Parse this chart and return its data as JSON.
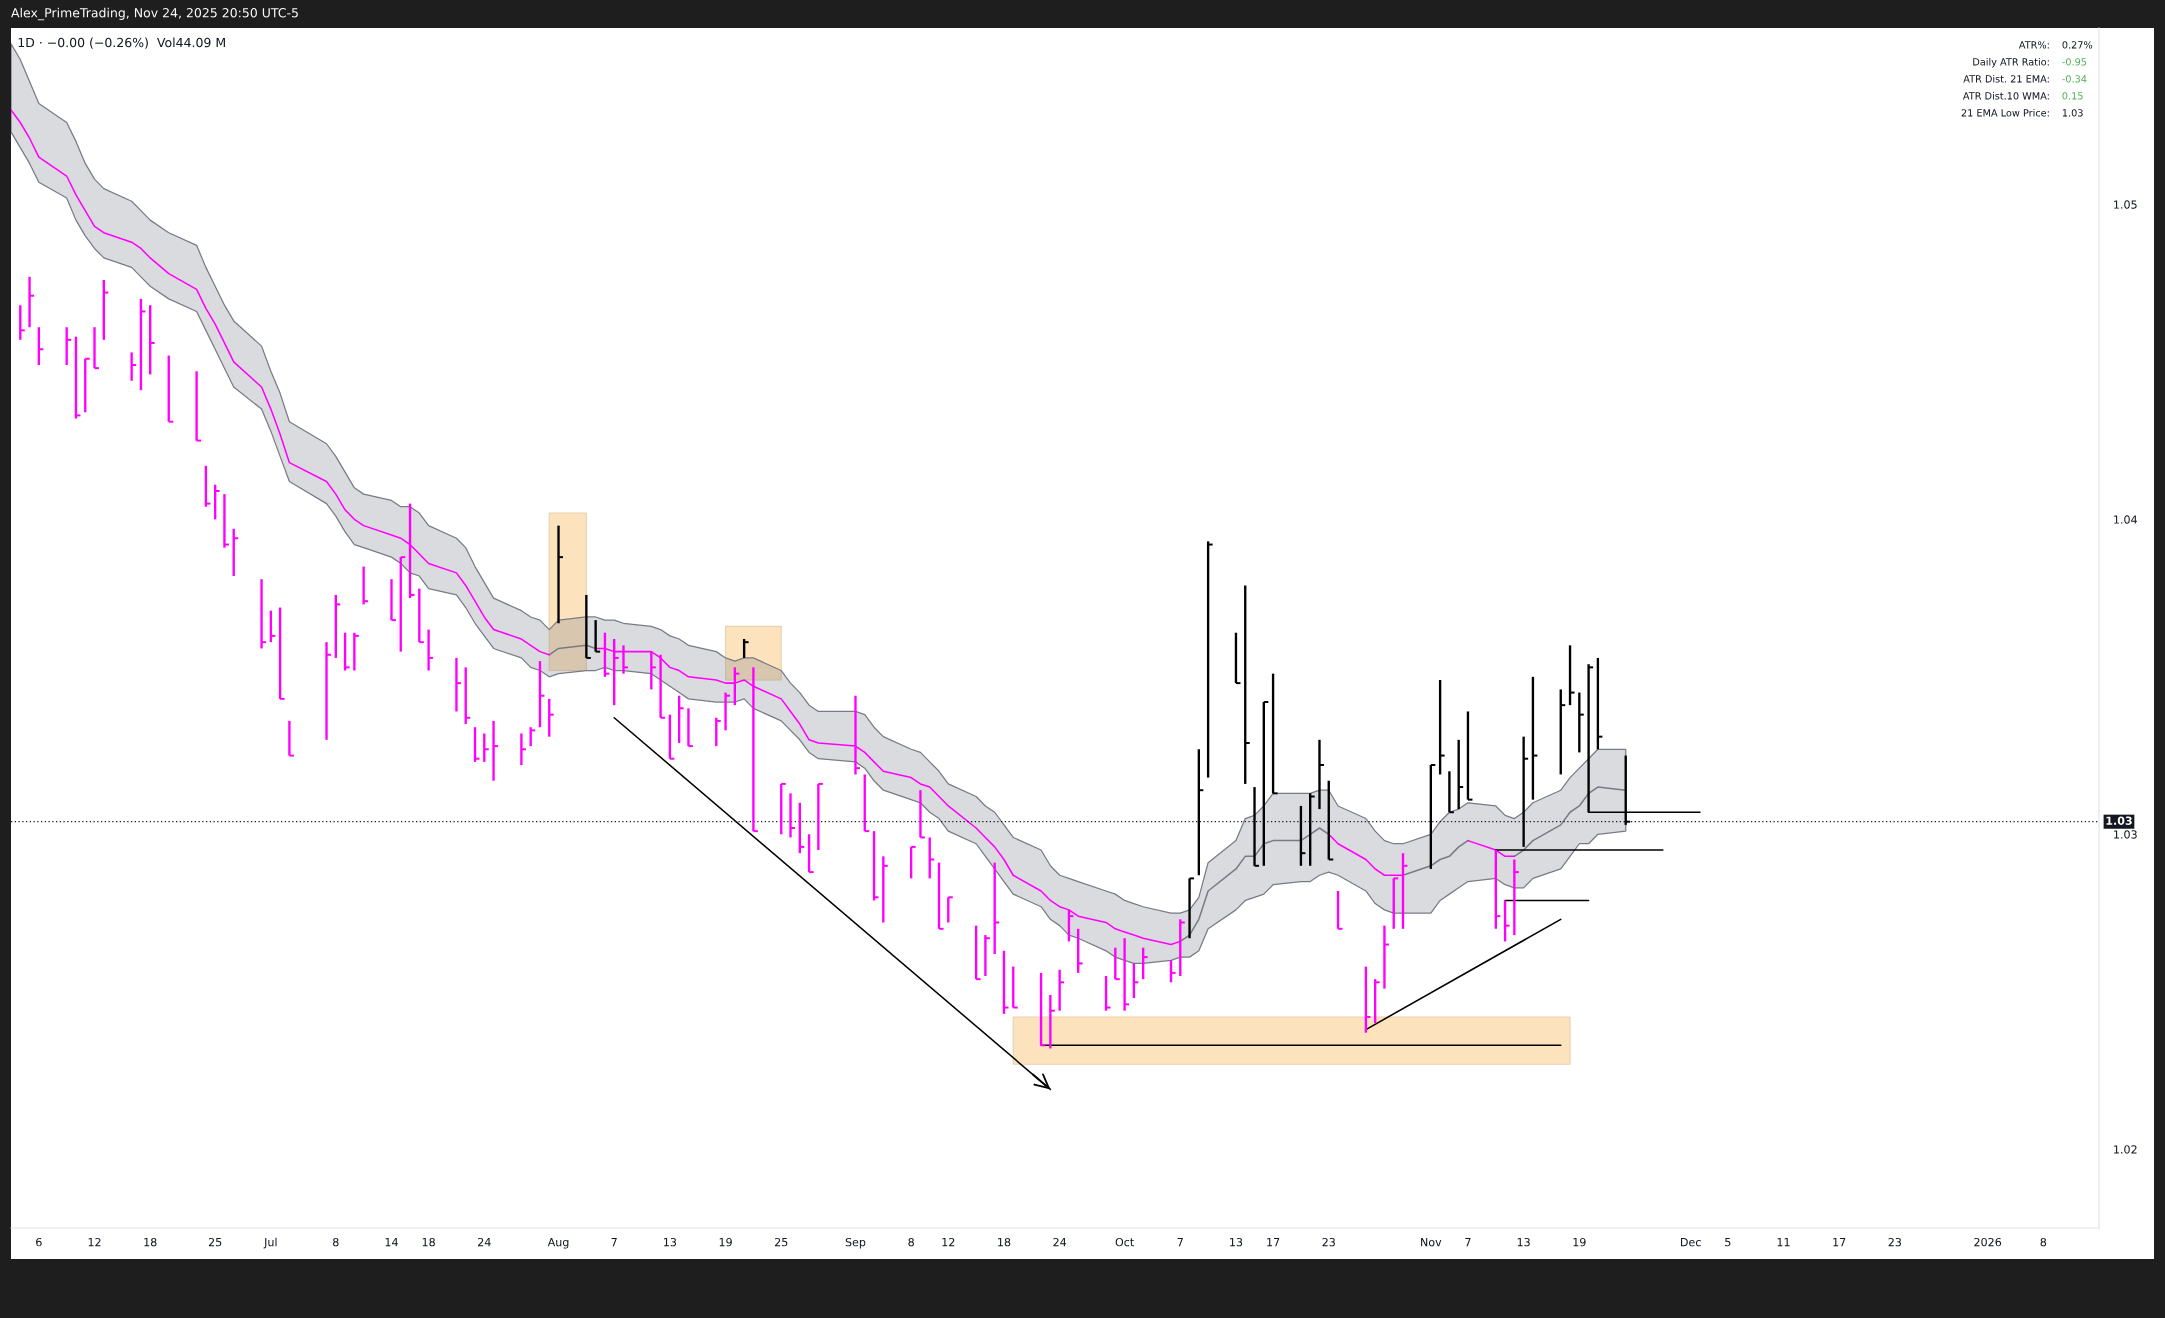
{
  "chart_data": {
    "type": "scatter",
    "title": "1D · −0.00 (−0.26%)  Vol44.09 M",
    "annotations": [
      "Alex_PrimeTrading, Nov 24, 2025 20:50 UTC-5",
      "ATR%:",
      "0.27%",
      "Daily ATR Ratio:",
      "-0.95",
      "ATR Dist. 21 EMA:",
      "-0.34",
      "ATR Dist.10 WMA:",
      "0.15",
      "21 EMA Low Price:",
      "1.03"
    ],
    "marker": "square",
    "x": [
      "2025-06-04",
      "2025-06-05",
      "2025-06-06",
      "2025-06-09",
      "2025-06-10",
      "2025-06-11",
      "2025-06-12",
      "2025-06-13",
      "2025-06-16",
      "2025-06-17",
      "2025-06-18",
      "2025-06-20",
      "2025-06-23",
      "2025-06-24",
      "2025-06-25",
      "2025-06-26",
      "2025-06-27",
      "2025-06-30",
      "2025-07-01",
      "2025-07-02",
      "2025-07-03",
      "2025-07-07",
      "2025-07-08",
      "2025-07-09",
      "2025-07-10",
      "2025-07-11",
      "2025-07-14",
      "2025-07-15",
      "2025-07-16",
      "2025-07-17",
      "2025-07-18",
      "2025-07-21",
      "2025-07-22",
      "2025-07-23",
      "2025-07-24",
      "2025-07-25",
      "2025-07-28",
      "2025-07-29",
      "2025-07-30",
      "2025-07-31",
      "2025-08-01",
      "2025-08-04",
      "2025-08-05",
      "2025-08-06",
      "2025-08-07",
      "2025-08-08",
      "2025-08-11",
      "2025-08-12",
      "2025-08-13",
      "2025-08-14",
      "2025-08-15",
      "2025-08-18",
      "2025-08-19",
      "2025-08-20",
      "2025-08-21",
      "2025-08-22",
      "2025-08-25",
      "2025-08-26",
      "2025-08-27",
      "2025-08-28",
      "2025-08-29",
      "2025-09-02",
      "2025-09-03",
      "2025-09-04",
      "2025-09-05",
      "2025-09-08",
      "2025-09-09",
      "2025-09-10",
      "2025-09-11",
      "2025-09-12",
      "2025-09-15",
      "2025-09-16",
      "2025-09-17",
      "2025-09-18",
      "2025-09-19",
      "2025-09-22",
      "2025-09-23",
      "2025-09-24",
      "2025-09-25",
      "2025-09-26",
      "2025-09-29",
      "2025-09-30",
      "2025-10-01",
      "2025-10-02",
      "2025-10-03",
      "2025-10-06",
      "2025-10-07",
      "2025-10-08",
      "2025-10-09",
      "2025-10-10",
      "2025-10-13",
      "2025-10-14",
      "2025-10-15",
      "2025-10-16",
      "2025-10-17",
      "2025-10-20",
      "2025-10-21",
      "2025-10-22",
      "2025-10-23",
      "2025-10-24",
      "2025-10-27",
      "2025-10-28",
      "2025-10-29",
      "2025-10-30",
      "2025-10-31",
      "2025-11-03",
      "2025-11-04",
      "2025-11-05",
      "2025-11-06",
      "2025-11-07",
      "2025-11-10",
      "2025-11-11",
      "2025-11-12",
      "2025-11-13",
      "2025-11-14",
      "2025-11-17",
      "2025-11-18",
      "2025-11-19",
      "2025-11-20",
      "2025-11-21",
      "2025-11-24"
    ],
    "values": [
      1.046,
      1.0471,
      1.0454,
      1.0457,
      1.0433,
      1.0451,
      1.0448,
      1.0472,
      1.0449,
      1.0466,
      1.0456,
      1.0431,
      1.0425,
      1.0405,
      1.0409,
      1.0392,
      1.0394,
      1.0361,
      1.0363,
      1.0343,
      1.0325,
      1.0357,
      1.0373,
      1.0353,
      1.0363,
      1.0374,
      1.0368,
      1.0388,
      1.0376,
      1.0361,
      1.0356,
      1.0348,
      1.0337,
      1.0324,
      1.0327,
      1.0328,
      1.0327,
      1.0333,
      1.0344,
      1.0338,
      1.0388,
      1.0356,
      1.0358,
      1.0351,
      1.0356,
      1.0353,
      1.0353,
      1.0337,
      1.0324,
      1.034,
      1.0328,
      1.0336,
      1.0344,
      1.0351,
      1.0361,
      1.0301,
      1.0316,
      1.0302,
      1.0296,
      1.0288,
      1.0316,
      1.0321,
      1.0301,
      1.028,
      1.029,
      1.0296,
      1.0299,
      1.0292,
      1.027,
      1.028,
      1.0254,
      1.0267,
      1.0272,
      1.0245,
      1.0245,
      1.0233,
      1.0244,
      1.0253,
      1.0274,
      1.0259,
      1.0245,
      1.0254,
      1.0246,
      1.0253,
      1.0261,
      1.0256,
      1.0272,
      1.0286,
      1.0314,
      1.0392,
      1.0348,
      1.0329,
      1.029,
      1.0342,
      1.0313,
      1.0294,
      1.0312,
      1.0322,
      1.0292,
      1.027,
      1.0242,
      1.0253,
      1.0265,
      1.0286,
      1.029,
      1.0322,
      1.0325,
      1.0307,
      1.0315,
      1.0311,
      1.0274,
      1.0271,
      1.0288,
      1.0324,
      1.0325,
      1.0341,
      1.0345,
      1.0338,
      1.0353,
      1.0331,
      1.0304
    ],
    "errors": [
      [
        1.0457,
        1.0468
      ],
      [
        1.0461,
        1.0477
      ],
      [
        1.0449,
        1.0461
      ],
      [
        1.0449,
        1.0461
      ],
      [
        1.0432,
        1.0458
      ],
      [
        1.0434,
        1.0451
      ],
      [
        1.0448,
        1.0461
      ],
      [
        1.0457,
        1.0476
      ],
      [
        1.0444,
        1.0453
      ],
      [
        1.0441,
        1.047
      ],
      [
        1.0446,
        1.0468
      ],
      [
        1.0431,
        1.0452
      ],
      [
        1.0425,
        1.0447
      ],
      [
        1.0404,
        1.0417
      ],
      [
        1.04,
        1.0411
      ],
      [
        1.0391,
        1.0408
      ],
      [
        1.0382,
        1.0397
      ],
      [
        1.0359,
        1.0381
      ],
      [
        1.0361,
        1.0371
      ],
      [
        1.0343,
        1.0372
      ],
      [
        1.0325,
        1.0336
      ],
      [
        1.033,
        1.0361
      ],
      [
        1.0356,
        1.0376
      ],
      [
        1.0352,
        1.0364
      ],
      [
        1.0352,
        1.0364
      ],
      [
        1.0373,
        1.0385
      ],
      [
        1.0368,
        1.0381
      ],
      [
        1.0358,
        1.0388
      ],
      [
        1.0375,
        1.0405
      ],
      [
        1.0361,
        1.0378
      ],
      [
        1.0352,
        1.0365
      ],
      [
        1.0339,
        1.0356
      ],
      [
        1.0335,
        1.0353
      ],
      [
        1.0323,
        1.0334
      ],
      [
        1.0323,
        1.0332
      ],
      [
        1.0317,
        1.0336
      ],
      [
        1.0322,
        1.0332
      ],
      [
        1.0328,
        1.0334
      ],
      [
        1.0334,
        1.0355
      ],
      [
        1.0331,
        1.0343
      ],
      [
        1.0367,
        1.0398
      ],
      [
        1.0356,
        1.0376
      ],
      [
        1.0358,
        1.0368
      ],
      [
        1.035,
        1.0364
      ],
      [
        1.0341,
        1.0362
      ],
      [
        1.0351,
        1.036
      ],
      [
        1.0346,
        1.0358
      ],
      [
        1.0337,
        1.0357
      ],
      [
        1.0324,
        1.0338
      ],
      [
        1.0329,
        1.0344
      ],
      [
        1.0328,
        1.034
      ],
      [
        1.0328,
        1.0337
      ],
      [
        1.0333,
        1.0345
      ],
      [
        1.0341,
        1.0353
      ],
      [
        1.0356,
        1.0362
      ],
      [
        1.0301,
        1.0353
      ],
      [
        1.03,
        1.0316
      ],
      [
        1.0299,
        1.0313
      ],
      [
        1.0294,
        1.031
      ],
      [
        1.0288,
        1.03
      ],
      [
        1.0295,
        1.0316
      ],
      [
        1.0319,
        1.0344
      ],
      [
        1.0301,
        1.0319
      ],
      [
        1.0279,
        1.0301
      ],
      [
        1.0272,
        1.0293
      ],
      [
        1.0286,
        1.0296
      ],
      [
        1.0299,
        1.0314
      ],
      [
        1.0286,
        1.0299
      ],
      [
        1.027,
        1.0291
      ],
      [
        1.0272,
        1.028
      ],
      [
        1.0254,
        1.0271
      ],
      [
        1.0255,
        1.0268
      ],
      [
        1.0262,
        1.0291
      ],
      [
        1.0243,
        1.0263
      ],
      [
        1.0245,
        1.0258
      ],
      [
        1.0233,
        1.0256
      ],
      [
        1.0232,
        1.0249
      ],
      [
        1.0244,
        1.0257
      ],
      [
        1.0266,
        1.0276
      ],
      [
        1.0256,
        1.027
      ],
      [
        1.0244,
        1.0255
      ],
      [
        1.0254,
        1.0264
      ],
      [
        1.0244,
        1.0267
      ],
      [
        1.0248,
        1.0259
      ],
      [
        1.0254,
        1.0264
      ],
      [
        1.0253,
        1.026
      ],
      [
        1.0255,
        1.0273
      ],
      [
        1.0267,
        1.0286
      ],
      [
        1.0287,
        1.0327
      ],
      [
        1.0318,
        1.0393
      ],
      [
        1.0348,
        1.0364
      ],
      [
        1.0316,
        1.0379
      ],
      [
        1.029,
        1.0315
      ],
      [
        1.029,
        1.0342
      ],
      [
        1.0313,
        1.0351
      ],
      [
        1.029,
        1.0309
      ],
      [
        1.029,
        1.0313
      ],
      [
        1.0308,
        1.033
      ],
      [
        1.0292,
        1.0317
      ],
      [
        1.027,
        1.0282
      ],
      [
        1.0237,
        1.0258
      ],
      [
        1.024,
        1.0254
      ],
      [
        1.0251,
        1.0271
      ],
      [
        1.027,
        1.0286
      ],
      [
        1.027,
        1.0294
      ],
      [
        1.0289,
        1.0322
      ],
      [
        1.0319,
        1.0349
      ],
      [
        1.0307,
        1.032
      ],
      [
        1.0308,
        1.033
      ],
      [
        1.0311,
        1.0339
      ],
      [
        1.027,
        1.0295
      ],
      [
        1.0266,
        1.0279
      ],
      [
        1.0268,
        1.0292
      ],
      [
        1.0296,
        1.0331
      ],
      [
        1.0311,
        1.035
      ],
      [
        1.0319,
        1.0346
      ],
      [
        1.0341,
        1.036
      ],
      [
        1.0326,
        1.0345
      ],
      [
        1.0307,
        1.0354
      ],
      [
        1.0327,
        1.0356
      ],
      [
        1.0303,
        1.0325
      ]
    ],
    "colors": [
      "#ff00ff",
      "#ff00ff",
      "#ff00ff",
      "#ff00ff",
      "#ff00ff",
      "#ff00ff",
      "#ff00ff",
      "#ff00ff",
      "#ff00ff",
      "#ff00ff",
      "#ff00ff",
      "#ff00ff",
      "#ff00ff",
      "#ff00ff",
      "#ff00ff",
      "#ff00ff",
      "#ff00ff",
      "#ff00ff",
      "#ff00ff",
      "#ff00ff",
      "#ff00ff",
      "#ff00ff",
      "#ff00ff",
      "#ff00ff",
      "#ff00ff",
      "#ff00ff",
      "#ff00ff",
      "#ff00ff",
      "#ff00ff",
      "#ff00ff",
      "#ff00ff",
      "#ff00ff",
      "#ff00ff",
      "#ff00ff",
      "#ff00ff",
      "#ff00ff",
      "#ff00ff",
      "#ff00ff",
      "#ff00ff",
      "#ff00ff",
      "#000000",
      "#000000",
      "#000000",
      "#ff00ff",
      "#ff00ff",
      "#ff00ff",
      "#ff00ff",
      "#ff00ff",
      "#ff00ff",
      "#ff00ff",
      "#ff00ff",
      "#ff00ff",
      "#ff00ff",
      "#ff00ff",
      "#000000",
      "#ff00ff",
      "#ff00ff",
      "#ff00ff",
      "#ff00ff",
      "#ff00ff",
      "#ff00ff",
      "#ff00ff",
      "#ff00ff",
      "#ff00ff",
      "#ff00ff",
      "#ff00ff",
      "#ff00ff",
      "#ff00ff",
      "#ff00ff",
      "#ff00ff",
      "#ff00ff",
      "#ff00ff",
      "#ff00ff",
      "#ff00ff",
      "#ff00ff",
      "#ff00ff",
      "#ff00ff",
      "#ff00ff",
      "#ff00ff",
      "#ff00ff",
      "#ff00ff",
      "#ff00ff",
      "#ff00ff",
      "#ff00ff",
      "#ff00ff",
      "#ff00ff",
      "#ff00ff",
      "#000000",
      "#000000",
      "#000000",
      "#000000",
      "#000000",
      "#000000",
      "#000000",
      "#000000",
      "#000000",
      "#000000",
      "#000000",
      "#000000",
      "#ff00ff",
      "#ff00ff",
      "#ff00ff",
      "#ff00ff",
      "#ff00ff",
      "#ff00ff",
      "#000000",
      "#000000",
      "#000000",
      "#000000",
      "#000000",
      "#ff00ff",
      "#ff00ff",
      "#ff00ff",
      "#000000",
      "#000000",
      "#000000",
      "#000000",
      "#000000",
      "#000000",
      "#000000",
      "#000000"
    ],
    "xlim": [
      "2025-06-03",
      "2026-01-14"
    ],
    "xticks": [
      {
        "value": "2025-06-06",
        "label": "6"
      },
      {
        "value": "2025-06-12",
        "label": "12"
      },
      {
        "value": "2025-06-18",
        "label": "18"
      },
      {
        "value": "2025-06-25",
        "label": "25"
      },
      {
        "value": "2025-07-01",
        "label": "Jul"
      },
      {
        "value": "2025-07-08",
        "label": "8"
      },
      {
        "value": "2025-07-14",
        "label": "14"
      },
      {
        "value": "2025-07-18",
        "label": "18"
      },
      {
        "value": "2025-07-24",
        "label": "24"
      },
      {
        "value": "2025-08-01",
        "label": "Aug"
      },
      {
        "value": "2025-08-07",
        "label": "7"
      },
      {
        "value": "2025-08-13",
        "label": "13"
      },
      {
        "value": "2025-08-19",
        "label": "19"
      },
      {
        "value": "2025-08-25",
        "label": "25"
      },
      {
        "value": "2025-09-02",
        "label": "Sep"
      },
      {
        "value": "2025-09-08",
        "label": "8"
      },
      {
        "value": "2025-09-12",
        "label": "12"
      },
      {
        "value": "2025-09-18",
        "label": "18"
      },
      {
        "value": "2025-09-24",
        "label": "24"
      },
      {
        "value": "2025-10-01",
        "label": "Oct"
      },
      {
        "value": "2025-10-07",
        "label": "7"
      },
      {
        "value": "2025-10-13",
        "label": "13"
      },
      {
        "value": "2025-10-17",
        "label": "17"
      },
      {
        "value": "2025-10-23",
        "label": "23"
      },
      {
        "value": "2025-11-03",
        "label": "Nov"
      },
      {
        "value": "2025-11-07",
        "label": "7"
      },
      {
        "value": "2025-11-13",
        "label": "13"
      },
      {
        "value": "2025-11-19",
        "label": "19"
      },
      {
        "value": "2025-12-01",
        "label": "Dec"
      },
      {
        "value": "2025-12-05",
        "label": "5"
      },
      {
        "value": "2025-12-11",
        "label": "11"
      },
      {
        "value": "2025-12-17",
        "label": "17"
      },
      {
        "value": "2025-12-23",
        "label": "23"
      },
      {
        "value": "2026-01-02",
        "label": "2026"
      },
      {
        "value": "2026-01-08",
        "label": "8"
      }
    ],
    "ylim": [
      1.0175,
      1.0556
    ],
    "yticks": [
      1.02,
      1.03,
      1.04,
      1.05
    ],
    "ref_lines": [
      {
        "axis": "y",
        "value": 1.0304,
        "label": "1.03",
        "line_style": "dotted",
        "color": "#131722"
      }
    ],
    "series": [
      {
        "type": "line",
        "marker": "none",
        "color": "#787b86",
        "x": [
          "2025-06-03",
          "2025-06-04",
          "2025-06-05",
          "2025-06-06",
          "2025-06-09",
          "2025-06-10",
          "2025-06-11",
          "2025-06-12",
          "2025-06-13",
          "2025-06-16",
          "2025-06-17",
          "2025-06-18",
          "2025-06-20",
          "2025-06-23",
          "2025-06-24",
          "2025-06-25",
          "2025-06-26",
          "2025-06-27",
          "2025-06-30",
          "2025-07-01",
          "2025-07-02",
          "2025-07-03",
          "2025-07-07",
          "2025-07-08",
          "2025-07-09",
          "2025-07-10",
          "2025-07-11",
          "2025-07-14",
          "2025-07-15",
          "2025-07-16",
          "2025-07-17",
          "2025-07-18",
          "2025-07-21",
          "2025-07-22",
          "2025-07-23",
          "2025-07-24",
          "2025-07-25",
          "2025-07-28",
          "2025-07-29",
          "2025-07-30",
          "2025-07-31",
          "2025-08-01",
          "2025-08-04",
          "2025-08-05",
          "2025-08-06",
          "2025-08-07",
          "2025-08-08",
          "2025-08-11",
          "2025-08-12",
          "2025-08-13",
          "2025-08-14",
          "2025-08-15",
          "2025-08-18",
          "2025-08-19",
          "2025-08-20",
          "2025-08-21",
          "2025-08-22",
          "2025-08-25",
          "2025-08-26",
          "2025-08-27",
          "2025-08-28",
          "2025-08-29",
          "2025-09-02",
          "2025-09-03",
          "2025-09-04",
          "2025-09-05",
          "2025-09-08",
          "2025-09-09",
          "2025-09-10",
          "2025-09-11",
          "2025-09-12",
          "2025-09-15",
          "2025-09-16",
          "2025-09-17",
          "2025-09-18",
          "2025-09-19",
          "2025-09-22",
          "2025-09-23",
          "2025-09-24",
          "2025-09-25",
          "2025-09-26",
          "2025-09-29",
          "2025-09-30",
          "2025-10-01",
          "2025-10-02",
          "2025-10-03",
          "2025-10-06",
          "2025-10-07",
          "2025-10-08",
          "2025-10-09",
          "2025-10-10",
          "2025-10-13",
          "2025-10-14",
          "2025-10-15",
          "2025-10-16",
          "2025-10-17",
          "2025-10-20",
          "2025-10-21",
          "2025-10-22",
          "2025-10-23",
          "2025-10-24",
          "2025-10-27",
          "2025-10-28",
          "2025-10-29",
          "2025-10-30",
          "2025-10-31",
          "2025-11-03",
          "2025-11-04",
          "2025-11-05",
          "2025-11-06",
          "2025-11-07",
          "2025-11-10",
          "2025-11-11",
          "2025-11-12",
          "2025-11-13",
          "2025-11-14",
          "2025-11-17",
          "2025-11-18",
          "2025-11-19",
          "2025-11-20",
          "2025-11-21",
          "2025-11-24"
        ],
        "values": [
          null,
          null,
          null,
          null,
          null,
          null,
          null,
          null,
          null,
          null,
          null,
          null,
          null,
          null,
          null,
          null,
          null,
          null,
          null,
          null,
          null,
          null,
          null,
          null,
          null,
          null,
          null,
          null,
          null,
          null,
          null,
          null,
          null,
          null,
          null,
          null,
          null,
          null,
          null,
          null,
          1.0357,
          1.0359,
          1.036,
          1.0359,
          null,
          null,
          null,
          null,
          null,
          null,
          null,
          null,
          null,
          null,
          null,
          null,
          null,
          null,
          null,
          null,
          null,
          null,
          null,
          null,
          null,
          null,
          null,
          null,
          null,
          null,
          null,
          null,
          null,
          null,
          null,
          null,
          null,
          null,
          null,
          null,
          null,
          null,
          null,
          null,
          null,
          null,
          null,
          1.0266,
          1.0268,
          1.0273,
          1.0282,
          1.0289,
          1.0293,
          1.0293,
          1.0297,
          1.0298,
          1.0298,
          1.03,
          1.0302,
          1.03,
          null,
          null,
          null,
          null,
          null,
          1.0287,
          1.029,
          1.0292,
          1.0293,
          1.0296,
          1.0298,
          null,
          null,
          1.0293,
          1.0295,
          1.0298,
          1.0303,
          1.0307,
          1.0309,
          1.0313,
          1.0315,
          1.0314
        ],
        "upper": [
          1.0551,
          1.0546,
          1.0539,
          1.0532,
          1.0526,
          1.052,
          1.0513,
          1.0508,
          1.0505,
          1.0501,
          1.0498,
          1.0495,
          1.0491,
          1.0487,
          1.048,
          1.0474,
          1.0468,
          1.0463,
          1.0455,
          1.0447,
          1.044,
          1.0431,
          1.0424,
          1.042,
          1.0415,
          1.041,
          1.0408,
          1.0406,
          1.0404,
          1.0404,
          1.0402,
          1.0398,
          1.0394,
          1.0391,
          1.0385,
          1.038,
          1.0375,
          1.0371,
          1.0369,
          1.0368,
          1.0365,
          1.0368,
          1.0369,
          1.0369,
          1.0368,
          1.0368,
          1.0367,
          1.0366,
          1.0365,
          1.0363,
          1.0362,
          1.036,
          1.0358,
          1.0356,
          1.0355,
          1.0356,
          1.0356,
          1.0352,
          1.0348,
          1.0345,
          1.0341,
          1.0339,
          1.0339,
          1.0338,
          1.0334,
          1.0331,
          1.0327,
          1.0326,
          1.0323,
          1.032,
          1.0316,
          1.0312,
          1.0309,
          1.0307,
          1.0303,
          1.0299,
          1.0295,
          1.029,
          1.0287,
          1.0286,
          1.0285,
          1.0282,
          1.0281,
          1.0279,
          1.0278,
          1.0277,
          1.0275,
          1.0275,
          1.0276,
          1.028,
          1.0291,
          1.0298,
          1.0305,
          1.0306,
          1.0309,
          1.0313,
          1.0313,
          1.0313,
          1.0314,
          1.0314,
          1.0309,
          1.0305,
          1.0301,
          1.0298,
          1.0297,
          1.0297,
          1.03,
          1.0304,
          1.0307,
          1.0308,
          1.031,
          1.0309,
          1.0306,
          1.0305,
          1.0307,
          1.031,
          1.0314,
          1.0318,
          1.0321,
          1.0324,
          1.0327,
          1.0327
        ],
        "lower": [
          1.0523,
          1.0518,
          1.0513,
          1.0507,
          1.0502,
          1.0495,
          1.049,
          1.0486,
          1.0483,
          1.048,
          1.0477,
          1.0474,
          1.047,
          1.0466,
          1.046,
          1.0454,
          1.0448,
          1.0442,
          1.0435,
          1.0428,
          1.042,
          1.0412,
          1.0405,
          1.0401,
          1.0396,
          1.0392,
          1.0391,
          1.0388,
          1.0386,
          1.0383,
          1.0382,
          1.0378,
          1.0376,
          1.0372,
          1.0367,
          1.0363,
          1.0359,
          1.0356,
          1.0353,
          1.0352,
          1.035,
          1.0351,
          1.0352,
          1.0352,
          1.0353,
          1.0352,
          1.0352,
          1.0351,
          1.0349,
          1.0347,
          1.0345,
          1.0343,
          1.0342,
          1.0342,
          1.0342,
          1.0343,
          1.034,
          1.0336,
          1.0333,
          1.033,
          1.0326,
          1.0324,
          1.0323,
          1.0321,
          1.0317,
          1.0314,
          1.0311,
          1.031,
          1.0307,
          1.0305,
          1.0301,
          1.0297,
          1.0293,
          1.0289,
          1.0285,
          1.0281,
          1.0277,
          1.0273,
          1.0271,
          1.0268,
          1.0267,
          1.0263,
          1.0261,
          1.026,
          1.0259,
          1.0259,
          1.026,
          1.0261,
          1.0261,
          1.0263,
          1.027,
          1.0276,
          1.0279,
          1.028,
          1.0281,
          1.0284,
          1.0285,
          1.0285,
          1.0287,
          1.0288,
          1.0287,
          1.0282,
          1.0278,
          1.0276,
          1.0275,
          1.0275,
          1.0275,
          1.0279,
          1.0281,
          1.0283,
          1.0285,
          1.0286,
          1.0284,
          1.0283,
          1.0283,
          1.0286,
          1.0289,
          1.0293,
          1.0297,
          1.0297,
          1.03,
          1.0301
        ]
      },
      {
        "type": "line",
        "marker": "none",
        "color": "#ff00ff",
        "x": [
          "2025-06-03",
          "2025-06-04",
          "2025-06-05",
          "2025-06-06",
          "2025-06-09",
          "2025-06-10",
          "2025-06-11",
          "2025-06-12",
          "2025-06-13",
          "2025-06-16",
          "2025-06-17",
          "2025-06-18",
          "2025-06-20",
          "2025-06-23",
          "2025-06-24",
          "2025-06-25",
          "2025-06-26",
          "2025-06-27",
          "2025-06-30",
          "2025-07-01",
          "2025-07-02",
          "2025-07-03",
          "2025-07-07",
          "2025-07-08",
          "2025-07-09",
          "2025-07-10",
          "2025-07-11",
          "2025-07-14",
          "2025-07-15",
          "2025-07-16",
          "2025-07-17",
          "2025-07-18",
          "2025-07-21",
          "2025-07-22",
          "2025-07-23",
          "2025-07-24",
          "2025-07-25",
          "2025-07-28",
          "2025-07-29",
          "2025-07-30",
          "2025-07-31",
          "2025-08-01",
          "2025-08-04",
          "2025-08-05",
          "2025-08-06",
          "2025-08-07",
          "2025-08-08",
          "2025-08-11",
          "2025-08-12",
          "2025-08-13",
          "2025-08-14",
          "2025-08-15",
          "2025-08-18",
          "2025-08-19",
          "2025-08-20",
          "2025-08-21",
          "2025-08-22",
          "2025-08-25",
          "2025-08-26",
          "2025-08-27",
          "2025-08-28",
          "2025-08-29",
          "2025-09-02",
          "2025-09-03",
          "2025-09-04",
          "2025-09-05",
          "2025-09-08",
          "2025-09-09",
          "2025-09-10",
          "2025-09-11",
          "2025-09-12",
          "2025-09-15",
          "2025-09-16",
          "2025-09-17",
          "2025-09-18",
          "2025-09-19",
          "2025-09-22",
          "2025-09-23",
          "2025-09-24",
          "2025-09-25",
          "2025-09-26",
          "2025-09-29",
          "2025-09-30",
          "2025-10-01",
          "2025-10-02",
          "2025-10-03",
          "2025-10-06",
          "2025-10-07",
          "2025-10-08",
          "2025-10-09",
          "2025-10-10",
          "2025-10-13",
          "2025-10-14",
          "2025-10-15",
          "2025-10-16",
          "2025-10-17",
          "2025-10-20",
          "2025-10-21",
          "2025-10-22",
          "2025-10-23",
          "2025-10-24",
          "2025-10-27",
          "2025-10-28",
          "2025-10-29",
          "2025-10-30",
          "2025-10-31",
          "2025-11-03",
          "2025-11-04",
          "2025-11-05",
          "2025-11-06",
          "2025-11-07",
          "2025-11-10",
          "2025-11-11",
          "2025-11-12"
        ],
        "values": [
          1.053,
          1.0526,
          1.0521,
          1.0515,
          1.0509,
          1.0503,
          1.0498,
          1.0493,
          1.0491,
          1.0488,
          1.0486,
          1.0483,
          1.0478,
          1.0473,
          1.0467,
          1.0462,
          1.0456,
          1.045,
          1.0442,
          1.0435,
          1.0427,
          1.0418,
          1.0412,
          1.0408,
          1.0403,
          1.04,
          1.0398,
          1.0395,
          1.0394,
          1.0392,
          1.0389,
          1.0386,
          1.0383,
          1.0379,
          1.0374,
          1.0369,
          1.0365,
          1.0362,
          1.036,
          1.0358,
          1.0357,
          null,
          null,
          1.0359,
          1.0359,
          1.0358,
          1.0358,
          1.0358,
          1.0356,
          1.0353,
          1.0352,
          1.035,
          1.0349,
          1.0348,
          1.0348,
          1.0349,
          1.0347,
          1.0343,
          1.0339,
          1.0335,
          1.033,
          1.0329,
          1.0328,
          1.0326,
          1.0323,
          1.032,
          1.0318,
          1.0316,
          1.0315,
          1.0312,
          1.0309,
          1.0302,
          1.0299,
          1.0296,
          1.0292,
          1.0287,
          1.0282,
          1.0279,
          1.0277,
          1.0276,
          1.0274,
          1.0272,
          1.027,
          1.0269,
          1.0268,
          1.0267,
          1.0265,
          1.0266,
          null,
          null,
          null,
          null,
          null,
          null,
          null,
          null,
          null,
          null,
          null,
          1.03,
          1.0297,
          1.0292,
          1.0289,
          1.0287,
          1.0287,
          1.0287,
          null,
          null,
          null,
          null,
          1.0298,
          1.0295,
          1.0293,
          1.0293
        ]
      },
      {
        "type": "line",
        "color": "#fde3bd",
        "x": [
          "2025-07-31",
          "2025-08-04"
        ],
        "values": [
          null,
          null
        ],
        "lower": [
          1.0352,
          1.0352
        ],
        "upper": [
          1.0402,
          1.0402
        ]
      },
      {
        "type": "line",
        "color": "#fde3bd",
        "x": [
          "2025-08-19",
          "2025-08-25"
        ],
        "values": [
          null,
          null
        ],
        "lower": [
          1.0349,
          1.0349
        ],
        "upper": [
          1.0366,
          1.0366
        ]
      },
      {
        "type": "line",
        "color": "#fde3bd",
        "x": [
          "2025-09-19",
          "2025-11-18"
        ],
        "values": [
          null,
          null
        ],
        "lower": [
          1.0227,
          1.0227
        ],
        "upper": [
          1.0242,
          1.0242
        ]
      },
      {
        "type": "line",
        "marker": "none",
        "color": "#000000",
        "x": [
          "2025-09-22",
          "2025-11-17"
        ],
        "values": [
          1.0233,
          1.0233
        ]
      },
      {
        "type": "line",
        "marker": "none",
        "color": "#000000",
        "x": [
          "2025-08-07",
          "2025-09-23"
        ],
        "values": [
          1.0337,
          1.0219
        ]
      },
      {
        "type": "line",
        "marker": "none",
        "color": "#000000",
        "x": [
          "2025-10-27",
          "2025-11-17"
        ],
        "values": [
          1.0238,
          1.0273
        ]
      },
      {
        "type": "line",
        "marker": "none",
        "color": "#000000",
        "x": [
          "2025-11-10",
          "2025-11-28"
        ],
        "values": [
          1.0295,
          1.0295
        ]
      },
      {
        "type": "line",
        "marker": "none",
        "color": "#000000",
        "x": [
          "2025-11-11",
          "2025-11-20"
        ],
        "values": [
          1.0279,
          1.0279
        ]
      },
      {
        "type": "line",
        "marker": "none",
        "color": "#000000",
        "x": [
          "2025-11-20",
          "2025-12-02"
        ],
        "values": [
          1.0307,
          1.0307
        ]
      }
    ]
  }
}
